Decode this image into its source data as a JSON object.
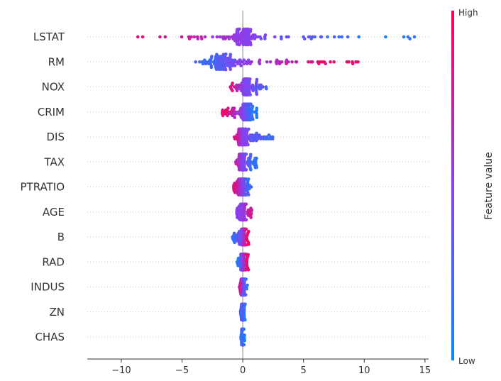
{
  "chart_data": {
    "type": "scatter",
    "subtype": "shap-beeswarm",
    "title": "",
    "xlabel": "",
    "xlim": [
      -12.8,
      15.3
    ],
    "xticks": [
      -10,
      -5,
      0,
      5,
      10,
      15
    ],
    "xtick_labels": [
      "−10",
      "−5",
      "0",
      "5",
      "10",
      "15"
    ],
    "features": [
      {
        "name": "LSTAT",
        "min": -11.6,
        "max": 14.2,
        "hub": 0.0,
        "hub_spread": 1.0,
        "neg_color": 0.9,
        "pos_color": 0.15
      },
      {
        "name": "RM",
        "min": -4.0,
        "max": 10.2,
        "hub": -1.6,
        "hub_spread": 1.3,
        "neg_color": 0.2,
        "pos_color": 0.95
      },
      {
        "name": "NOX",
        "min": -1.5,
        "max": 2.2,
        "hub": 0.3,
        "hub_spread": 0.4,
        "neg_color": 0.9,
        "pos_color": 0.3
      },
      {
        "name": "CRIM",
        "min": -1.8,
        "max": 1.3,
        "hub": 0.3,
        "hub_spread": 0.4,
        "neg_color": 0.9,
        "pos_color": 0.1
      },
      {
        "name": "DIS",
        "min": -0.7,
        "max": 2.6,
        "hub": 0.0,
        "hub_spread": 0.5,
        "neg_color": 0.85,
        "pos_color": 0.2
      },
      {
        "name": "TAX",
        "min": -0.6,
        "max": 1.2,
        "hub": 0.0,
        "hub_spread": 0.35,
        "neg_color": 0.7,
        "pos_color": 0.15
      },
      {
        "name": "PTRATIO",
        "min": -0.8,
        "max": 0.7,
        "hub": 0.0,
        "hub_spread": 0.4,
        "neg_color": 0.85,
        "pos_color": 0.2
      },
      {
        "name": "AGE",
        "min": -0.5,
        "max": 0.8,
        "hub": 0.0,
        "hub_spread": 0.3,
        "neg_color": 0.5,
        "pos_color": 0.8
      },
      {
        "name": "B",
        "min": -0.9,
        "max": 0.5,
        "hub": 0.1,
        "hub_spread": 0.2,
        "neg_color": 0.2,
        "pos_color": 0.95
      },
      {
        "name": "RAD",
        "min": -0.5,
        "max": 0.5,
        "hub": 0.0,
        "hub_spread": 0.2,
        "neg_color": 0.1,
        "pos_color": 0.9
      },
      {
        "name": "INDUS",
        "min": -0.3,
        "max": 0.4,
        "hub": 0.0,
        "hub_spread": 0.15,
        "neg_color": 0.85,
        "pos_color": 0.15
      },
      {
        "name": "ZN",
        "min": -0.2,
        "max": 0.2,
        "hub": 0.0,
        "hub_spread": 0.1,
        "neg_color": 0.2,
        "pos_color": 0.15
      },
      {
        "name": "CHAS",
        "min": -0.15,
        "max": 0.15,
        "hub": 0.0,
        "hub_spread": 0.08,
        "neg_color": 0.1,
        "pos_color": 0.1
      }
    ],
    "colorbar": {
      "title": "Feature value",
      "high_label": "High",
      "low_label": "Low",
      "low_color": "#008bfb",
      "mid_color": "#8a3ff0",
      "high_color": "#ff0052"
    },
    "zero_line_color": "#999999"
  }
}
